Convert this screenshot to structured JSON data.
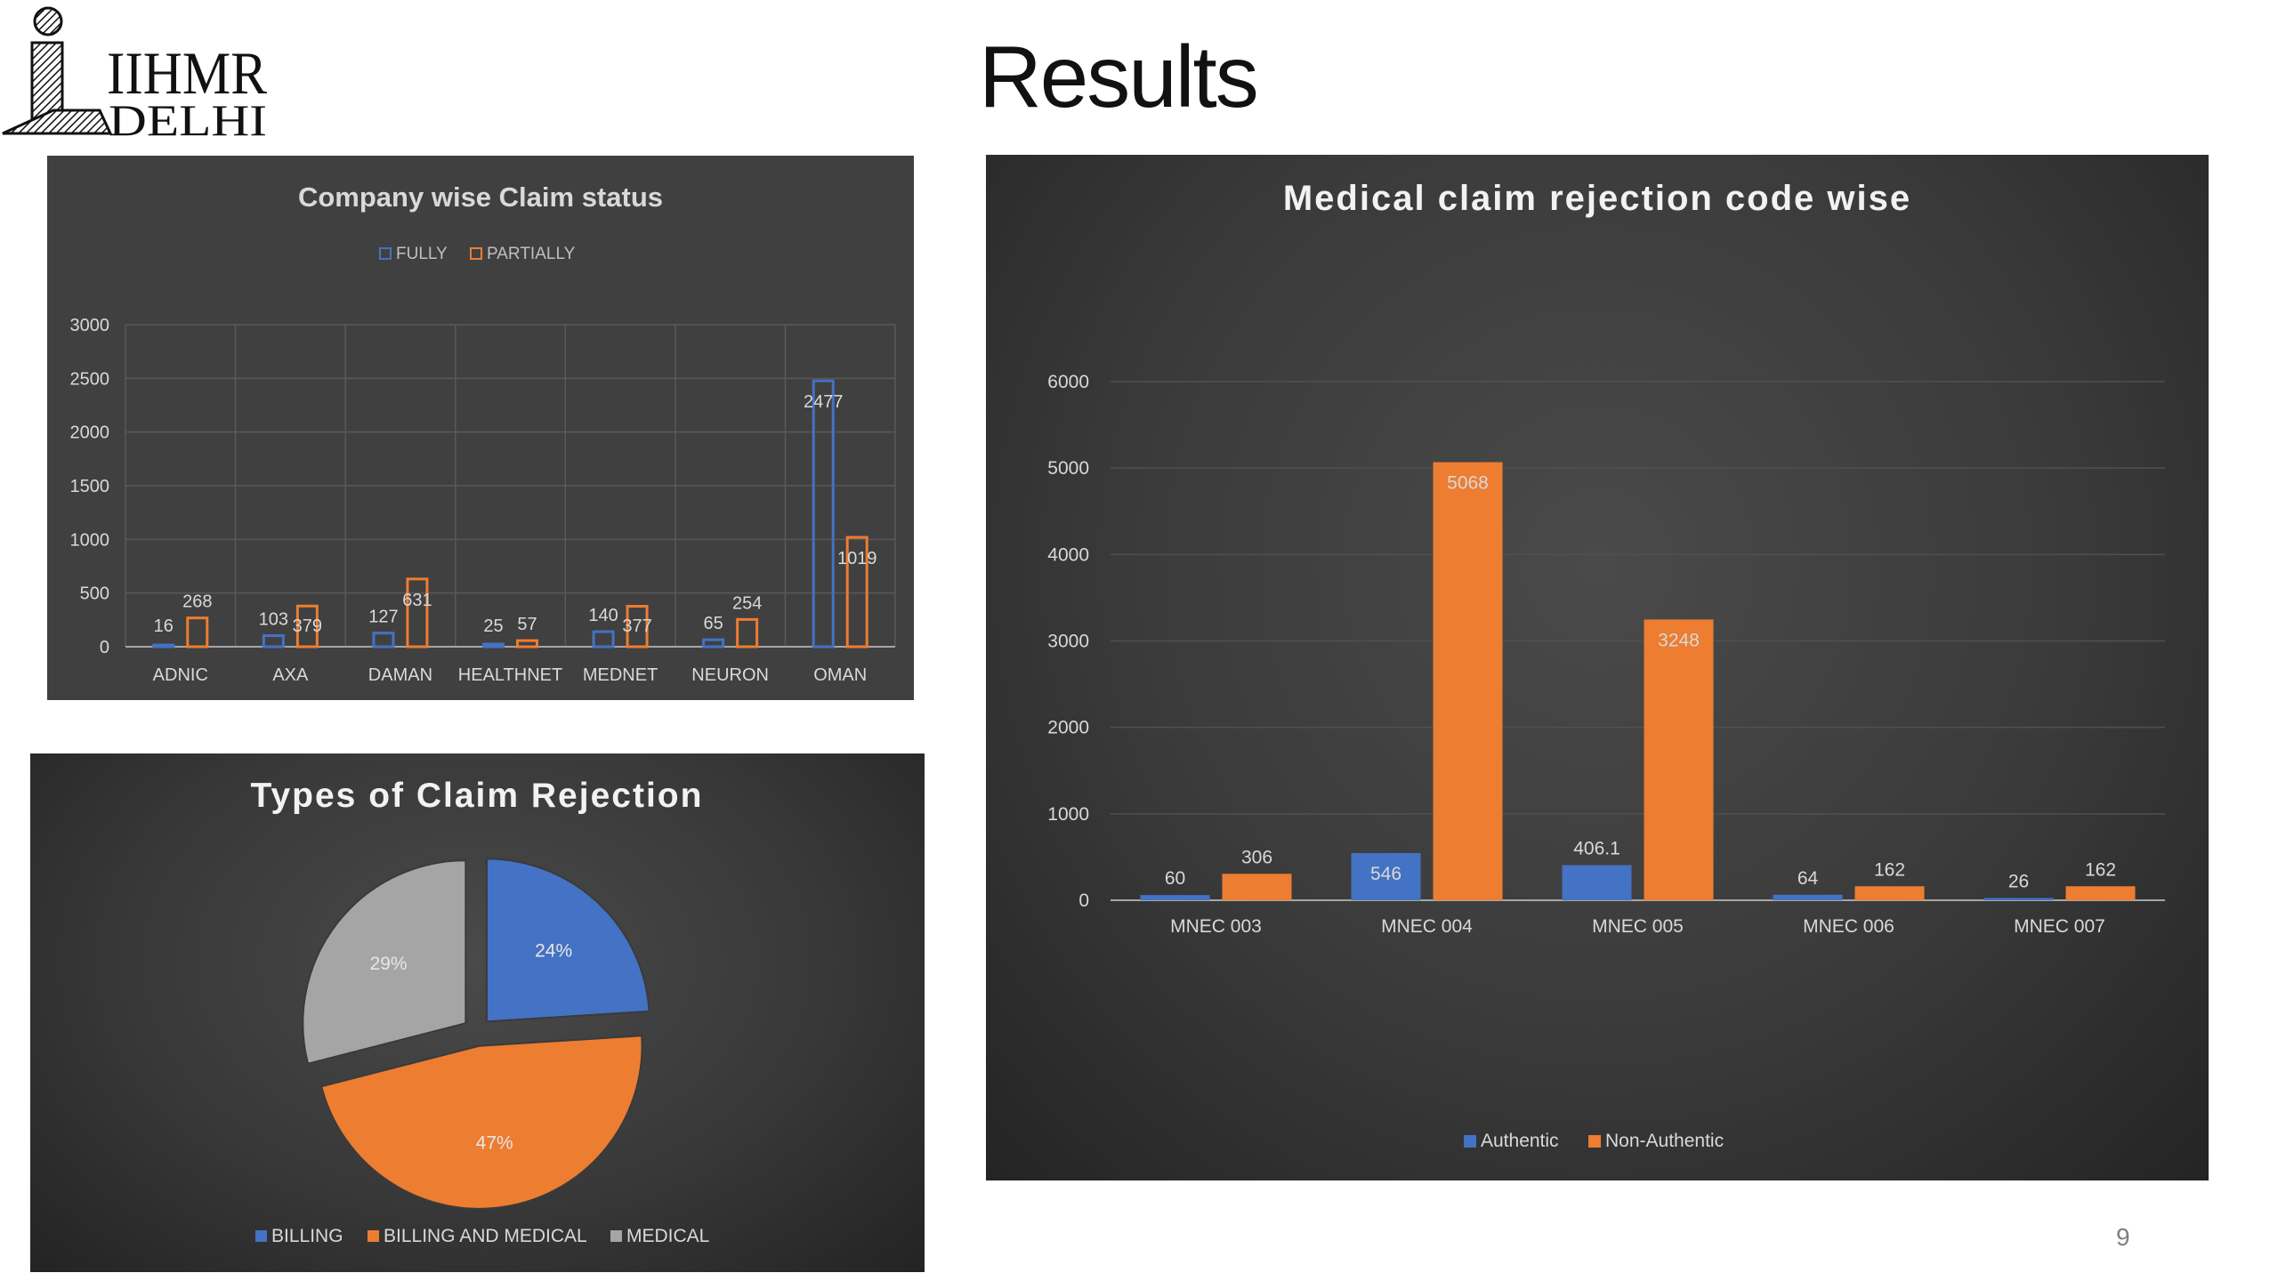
{
  "logo": {
    "line1": "IIHMR",
    "line2": "DELHI"
  },
  "page": {
    "title": "Results",
    "slide_number": "9"
  },
  "colors": {
    "blue": "#4472C4",
    "orange": "#ED7D31",
    "gray": "#A5A5A5",
    "text": "#D9D9D9"
  },
  "chart_data": [
    {
      "id": "company",
      "type": "bar",
      "title": "Company wise Claim status",
      "categories": [
        "ADNIC",
        "AXA",
        "DAMAN",
        "HEALTHNET",
        "MEDNET",
        "NEURON",
        "OMAN"
      ],
      "series": [
        {
          "name": "FULLY",
          "values": [
            16,
            103,
            127,
            25,
            140,
            65,
            2477
          ],
          "labels": [
            "16",
            "103",
            "127",
            "25",
            "140",
            "65",
            "2477"
          ]
        },
        {
          "name": "PARTIALLY",
          "values": [
            268,
            379,
            631,
            57,
            377,
            254,
            1019
          ],
          "labels": [
            "268",
            "379",
            "631",
            "57",
            "377",
            "254",
            "1019"
          ]
        }
      ],
      "yticks": [
        "0",
        "500",
        "1000",
        "1500",
        "2000",
        "2500",
        "3000"
      ],
      "ylim": [
        0,
        3000
      ],
      "grid": true,
      "legend": "top",
      "bar_style": "outline"
    },
    {
      "id": "rejection-code",
      "type": "bar",
      "title": "Medical claim rejection code wise",
      "categories": [
        "MNEC 003",
        "MNEC 004",
        "MNEC 005",
        "MNEC 006",
        "MNEC 007"
      ],
      "series": [
        {
          "name": "Authentic",
          "values": [
            60,
            546,
            406.1,
            64,
            26
          ],
          "labels": [
            "60",
            "546",
            "406.1",
            "64",
            "26"
          ]
        },
        {
          "name": "Non-Authentic",
          "values": [
            306,
            5068,
            3248,
            162,
            162
          ],
          "labels": [
            "306",
            "5068",
            "3248",
            "162",
            "162"
          ]
        }
      ],
      "yticks": [
        "0",
        "1000",
        "2000",
        "3000",
        "4000",
        "5000",
        "6000"
      ],
      "ylim": [
        0,
        6000
      ],
      "grid": true,
      "legend": "bottom",
      "bar_style": "filled"
    },
    {
      "id": "rejection-types",
      "type": "pie",
      "title": "Types of Claim Rejection",
      "slices": [
        {
          "name": "BILLING",
          "value": 24,
          "label": "24%",
          "color": "#4472C4"
        },
        {
          "name": "BILLING AND MEDICAL",
          "value": 47,
          "label": "47%",
          "color": "#ED7D31"
        },
        {
          "name": "MEDICAL",
          "value": 29,
          "label": "29%",
          "color": "#A5A5A5"
        }
      ],
      "legend": "bottom",
      "exploded": true
    }
  ]
}
